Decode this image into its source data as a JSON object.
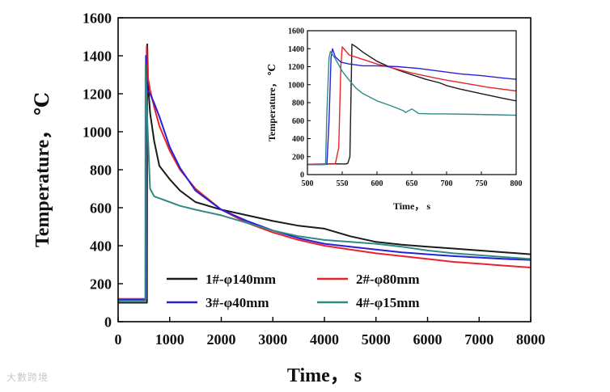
{
  "watermark": "大數跨境",
  "chart_data": [
    {
      "id": "main",
      "type": "line",
      "xlabel": "Time，  s",
      "ylabel": "Temperature， ℃",
      "xlim": [
        0,
        8000
      ],
      "ylim": [
        0,
        1600
      ],
      "xticks": [
        0,
        1000,
        2000,
        3000,
        4000,
        5000,
        6000,
        7000,
        8000
      ],
      "yticks": [
        0,
        200,
        400,
        600,
        800,
        1000,
        1200,
        1400,
        1600
      ],
      "legend_position": "bottom-center",
      "series": [
        {
          "name": "1#-φ140mm",
          "color": "#1a1a1a",
          "x": [
            0,
            500,
            560,
            565,
            580,
            620,
            700,
            800,
            1000,
            1200,
            1500,
            2000,
            2500,
            3000,
            3500,
            4000,
            4500,
            5000,
            5500,
            6000,
            6500,
            7000,
            7500,
            8000
          ],
          "y": [
            100,
            100,
            100,
            1460,
            1250,
            1100,
            950,
            820,
            750,
            690,
            630,
            590,
            560,
            530,
            505,
            490,
            450,
            420,
            405,
            395,
            385,
            375,
            365,
            355
          ]
        },
        {
          "name": "2#-φ80mm",
          "color": "#e8242a",
          "x": [
            0,
            500,
            548,
            553,
            570,
            620,
            700,
            800,
            1000,
            1200,
            1500,
            2000,
            2500,
            3000,
            3500,
            4000,
            4500,
            5000,
            5500,
            6000,
            6500,
            7000,
            7500,
            8000
          ],
          "y": [
            120,
            120,
            120,
            1450,
            1300,
            1220,
            1130,
            1030,
            900,
            800,
            700,
            590,
            520,
            470,
            430,
            400,
            380,
            360,
            345,
            330,
            315,
            305,
            295,
            285
          ]
        },
        {
          "name": "3#-φ40mm",
          "color": "#2a1fd8",
          "x": [
            0,
            500,
            535,
            540,
            560,
            620,
            700,
            800,
            1000,
            1200,
            1500,
            2000,
            2500,
            3000,
            3500,
            4000,
            4500,
            5000,
            5500,
            6000,
            6500,
            7000,
            7500,
            8000
          ],
          "y": [
            115,
            115,
            115,
            1400,
            1220,
            1200,
            1150,
            1080,
            920,
            810,
            690,
            590,
            530,
            480,
            440,
            410,
            395,
            380,
            365,
            355,
            345,
            338,
            330,
            325
          ]
        },
        {
          "name": "4#-φ15mm",
          "color": "#2f8a86",
          "x": [
            0,
            500,
            527,
            532,
            560,
            620,
            700,
            800,
            1000,
            1200,
            1500,
            2000,
            2500,
            3000,
            3500,
            4000,
            4500,
            5000,
            5500,
            6000,
            6500,
            7000,
            7500,
            8000
          ],
          "y": [
            110,
            110,
            110,
            1350,
            1100,
            700,
            660,
            650,
            630,
            610,
            590,
            560,
            520,
            480,
            450,
            430,
            420,
            410,
            395,
            375,
            360,
            350,
            340,
            330
          ]
        }
      ]
    },
    {
      "id": "inset",
      "type": "line",
      "xlabel": "Time，  s",
      "ylabel": "Temperature， ℃",
      "xlim": [
        500,
        800
      ],
      "ylim": [
        0,
        1600
      ],
      "xticks": [
        500,
        550,
        600,
        650,
        700,
        750,
        800
      ],
      "yticks": [
        0,
        200,
        400,
        600,
        800,
        1000,
        1200,
        1400,
        1600
      ],
      "series": [
        {
          "name": "1#-φ140mm",
          "color": "#1a1a1a",
          "x": [
            500,
            520,
            540,
            555,
            558,
            561,
            564,
            570,
            580,
            600,
            620,
            650,
            670,
            690,
            700,
            720,
            750,
            780,
            800
          ],
          "y": [
            115,
            118,
            120,
            118,
            125,
            200,
            1450,
            1420,
            1360,
            1260,
            1190,
            1110,
            1060,
            1020,
            990,
            950,
            900,
            850,
            820
          ]
        },
        {
          "name": "2#-φ80mm",
          "color": "#e8242a",
          "x": [
            500,
            520,
            540,
            545,
            548,
            550,
            560,
            580,
            600,
            620,
            650,
            680,
            700,
            730,
            760,
            800
          ],
          "y": [
            115,
            115,
            118,
            300,
            1200,
            1420,
            1330,
            1280,
            1230,
            1190,
            1130,
            1080,
            1050,
            1010,
            970,
            930
          ]
        },
        {
          "name": "3#-φ40mm",
          "color": "#2a1fd8",
          "x": [
            500,
            520,
            528,
            531,
            534,
            536,
            540,
            548,
            560,
            580,
            600,
            630,
            660,
            690,
            720,
            750,
            780,
            800
          ],
          "y": [
            110,
            112,
            115,
            600,
            1300,
            1400,
            1310,
            1250,
            1230,
            1210,
            1210,
            1200,
            1180,
            1150,
            1120,
            1100,
            1075,
            1060
          ]
        },
        {
          "name": "4#-φ15mm",
          "color": "#2f8a86",
          "x": [
            500,
            520,
            526,
            528,
            531,
            533,
            540,
            550,
            560,
            570,
            580,
            600,
            620,
            638,
            641,
            650,
            660,
            680,
            700,
            740,
            770,
            800
          ],
          "y": [
            110,
            112,
            112,
            700,
            1300,
            1370,
            1290,
            1150,
            1050,
            960,
            900,
            820,
            765,
            710,
            690,
            730,
            680,
            675,
            675,
            670,
            665,
            660
          ]
        }
      ]
    }
  ]
}
